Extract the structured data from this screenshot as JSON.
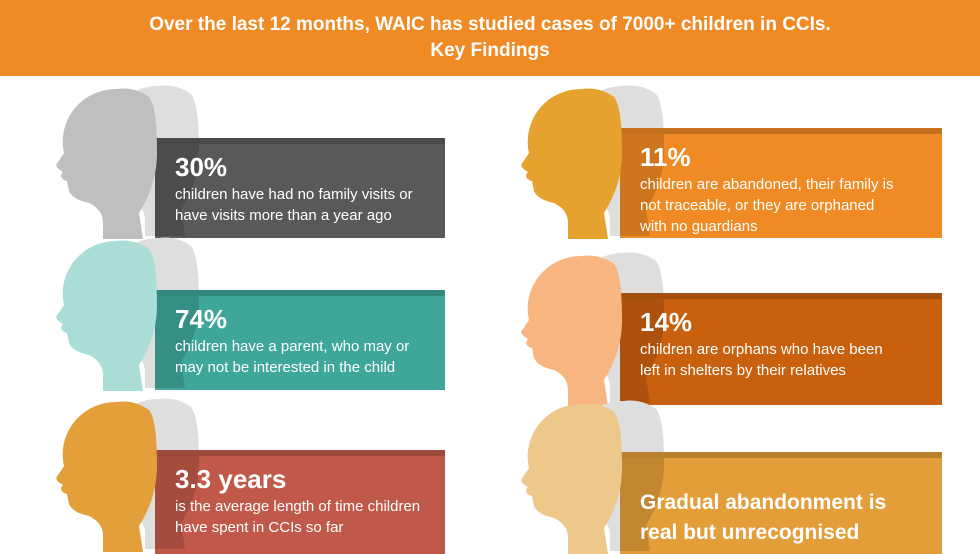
{
  "header": {
    "line1": "Over the last 12 months, WAIC has studied cases of 7000+ children in CCIs.",
    "line2": "Key Findings"
  },
  "findings": [
    {
      "stat": "30%",
      "desc1": "children have had no family visits or",
      "desc2": "have visits more than a year ago",
      "head_color": "#bfbfbf",
      "box_color": "#58595b"
    },
    {
      "stat": "74%",
      "desc1": "children have a parent, who may or",
      "desc2": "may not be interested in the child",
      "head_color": "#a9ddd6",
      "box_color": "#3fa79a"
    },
    {
      "stat": "3.3 years",
      "desc1": "is the average length of time children",
      "desc2": "have spent in CCIs so far",
      "head_color": "#e3a03a",
      "box_color": "#c0594a"
    },
    {
      "stat": "11%",
      "desc1": "children are abandoned, their family is",
      "desc2": "not traceable, or they are orphaned",
      "desc3": "with no guardians",
      "head_color": "#e6a22e",
      "box_color": "#f08a24"
    },
    {
      "stat": "14%",
      "desc1": "children are orphans who have been",
      "desc2": "left in shelters by their relatives",
      "head_color": "#f9b57f",
      "box_color": "#c9600e"
    },
    {
      "line1": "Gradual abandonment is",
      "line2": "real but unrecognised",
      "head_color": "#eec78a",
      "box_color": "#e39e3a"
    }
  ],
  "icons": {
    "child": "child-head-silhouette-icon"
  },
  "colors": {
    "accent": "#f08a24",
    "back_head": "#dedede"
  }
}
